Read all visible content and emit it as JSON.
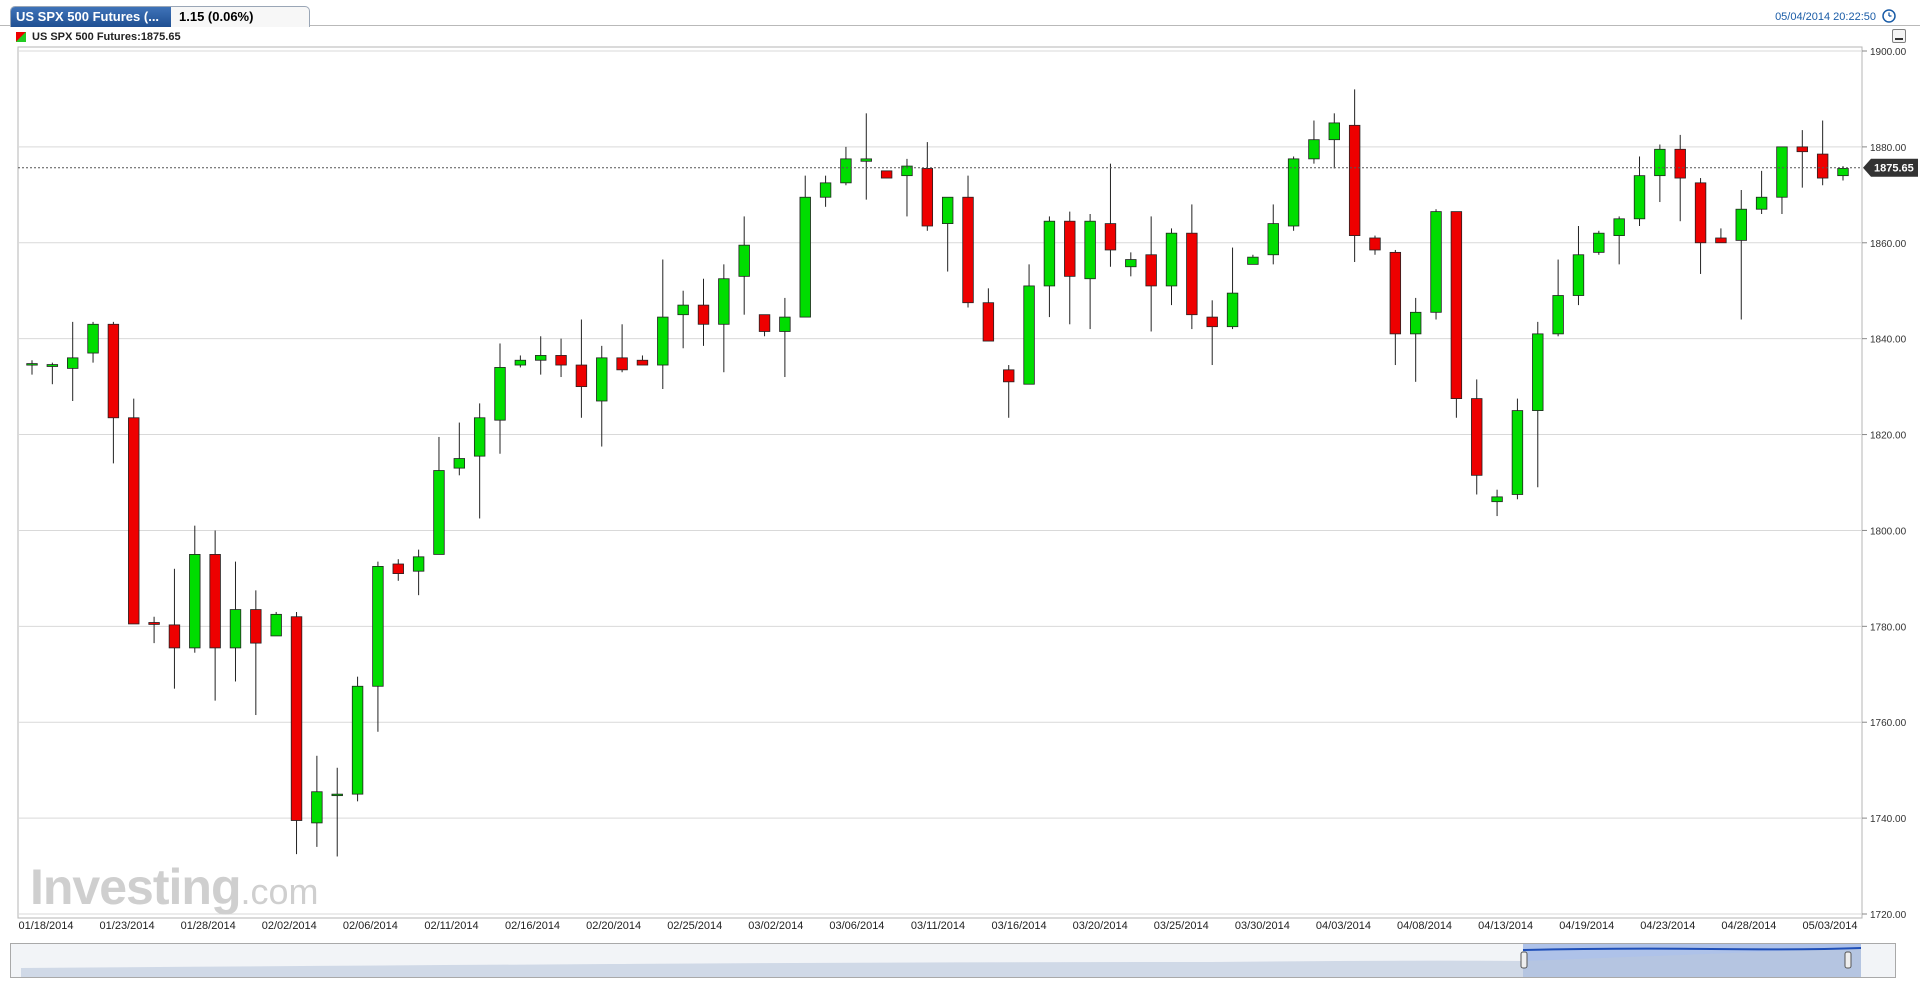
{
  "header": {
    "tab_title": "US SPX 500 Futures (...",
    "change_text": "1.15 (0.06%)",
    "datetime": "05/04/2014 20:22:50",
    "clock_icon": "clock-icon"
  },
  "legend": {
    "text": "US SPX 500 Futures:1875.65",
    "icon": "candle-legend-icon"
  },
  "watermark": {
    "brand": "Investing",
    "suffix": ".com"
  },
  "colors": {
    "up": "#00dd00",
    "down": "#ee0000",
    "grid": "#d9d9d9",
    "last_price_label_bg": "#333333",
    "navigator_fill": "#5b84d6",
    "accent": "#1a5ca7"
  },
  "chart_data": {
    "type": "candlestick",
    "title": "US SPX 500 Futures",
    "ylim": [
      1720,
      1900
    ],
    "y_ticks": [
      1720,
      1740,
      1760,
      1780,
      1800,
      1820,
      1840,
      1860,
      1880,
      1900
    ],
    "y_tick_labels": [
      "1720.00",
      "1740.00",
      "1760.00",
      "1780.00",
      "1800.00",
      "1820.00",
      "1840.00",
      "1860.00",
      "1880.00",
      "1900.00"
    ],
    "x_tick_labels": [
      "01/18/2014",
      "01/23/2014",
      "01/28/2014",
      "02/02/2014",
      "02/06/2014",
      "02/11/2014",
      "02/16/2014",
      "02/20/2014",
      "02/25/2014",
      "03/02/2014",
      "03/06/2014",
      "03/11/2014",
      "03/16/2014",
      "03/20/2014",
      "03/25/2014",
      "03/30/2014",
      "04/03/2014",
      "04/08/2014",
      "04/13/2014",
      "04/19/2014",
      "04/23/2014",
      "04/28/2014",
      "05/03/2014"
    ],
    "last_price": 1875.65,
    "last_price_label": "1875.65",
    "grid": true,
    "series": [
      {
        "candles": [
          {
            "o": 1834.5,
            "h": 1835.5,
            "l": 1832.5,
            "c": 1834.8
          },
          {
            "o": 1834.2,
            "h": 1835,
            "l": 1830.5,
            "c": 1834.6
          },
          {
            "o": 1833.8,
            "h": 1843.5,
            "l": 1827,
            "c": 1836
          },
          {
            "o": 1837,
            "h": 1843.5,
            "l": 1835,
            "c": 1843
          },
          {
            "o": 1843,
            "h": 1843.5,
            "l": 1814,
            "c": 1823.5
          },
          {
            "o": 1823.5,
            "h": 1827.5,
            "l": 1780.5,
            "c": 1780.5
          },
          {
            "o": 1780.8,
            "h": 1782,
            "l": 1776.5,
            "c": 1780.4
          },
          {
            "o": 1780.3,
            "h": 1792,
            "l": 1767,
            "c": 1775.5
          },
          {
            "o": 1775.5,
            "h": 1801,
            "l": 1774.5,
            "c": 1795
          },
          {
            "o": 1795,
            "h": 1800,
            "l": 1764.5,
            "c": 1775.5
          },
          {
            "o": 1775.5,
            "h": 1793.5,
            "l": 1768.5,
            "c": 1783.5
          },
          {
            "o": 1783.5,
            "h": 1787.5,
            "l": 1761.5,
            "c": 1776.5
          },
          {
            "o": 1778,
            "h": 1783,
            "l": 1778,
            "c": 1782.5
          },
          {
            "o": 1782,
            "h": 1783,
            "l": 1732.5,
            "c": 1739.5
          },
          {
            "o": 1739,
            "h": 1753,
            "l": 1734,
            "c": 1745.5
          },
          {
            "o": 1745,
            "h": 1750.5,
            "l": 1732,
            "c": 1745
          },
          {
            "o": 1745,
            "h": 1769.5,
            "l": 1743.5,
            "c": 1767.5
          },
          {
            "o": 1767.5,
            "h": 1793.5,
            "l": 1758,
            "c": 1792.5
          },
          {
            "o": 1793,
            "h": 1794,
            "l": 1789.5,
            "c": 1791
          },
          {
            "o": 1791.5,
            "h": 1796,
            "l": 1786.5,
            "c": 1794.5
          },
          {
            "o": 1795,
            "h": 1819.5,
            "l": 1795,
            "c": 1812.5
          },
          {
            "o": 1813,
            "h": 1822.5,
            "l": 1811.5,
            "c": 1815
          },
          {
            "o": 1815.5,
            "h": 1826.5,
            "l": 1802.5,
            "c": 1823.5
          },
          {
            "o": 1823,
            "h": 1839,
            "l": 1816,
            "c": 1834
          },
          {
            "o": 1834.5,
            "h": 1836.5,
            "l": 1834,
            "c": 1835.5
          },
          {
            "o": 1835.5,
            "h": 1840.5,
            "l": 1832.5,
            "c": 1836.5
          },
          {
            "o": 1836.5,
            "h": 1840,
            "l": 1832,
            "c": 1834.5
          },
          {
            "o": 1834.5,
            "h": 1844,
            "l": 1823.5,
            "c": 1830
          },
          {
            "o": 1827,
            "h": 1838.5,
            "l": 1817.5,
            "c": 1836
          },
          {
            "o": 1836,
            "h": 1843,
            "l": 1833,
            "c": 1833.5
          },
          {
            "o": 1835.5,
            "h": 1836.5,
            "l": 1834.5,
            "c": 1834.5
          },
          {
            "o": 1834.5,
            "h": 1856.5,
            "l": 1829.5,
            "c": 1844.5
          },
          {
            "o": 1845,
            "h": 1850,
            "l": 1838,
            "c": 1847
          },
          {
            "o": 1847,
            "h": 1852.5,
            "l": 1838.5,
            "c": 1843
          },
          {
            "o": 1843,
            "h": 1855.5,
            "l": 1833,
            "c": 1852.5
          },
          {
            "o": 1853,
            "h": 1865.5,
            "l": 1845,
            "c": 1859.5
          },
          {
            "o": 1845,
            "h": 1845,
            "l": 1840.5,
            "c": 1841.5
          },
          {
            "o": 1841.5,
            "h": 1848.5,
            "l": 1832,
            "c": 1844.5
          },
          {
            "o": 1844.5,
            "h": 1874,
            "l": 1844.5,
            "c": 1869.5
          },
          {
            "o": 1869.5,
            "h": 1874,
            "l": 1867.5,
            "c": 1872.5
          },
          {
            "o": 1872.5,
            "h": 1880,
            "l": 1872,
            "c": 1877.5
          },
          {
            "o": 1877,
            "h": 1887,
            "l": 1869,
            "c": 1877.5
          },
          {
            "o": 1875,
            "h": 1875,
            "l": 1873.5,
            "c": 1873.5
          },
          {
            "o": 1874,
            "h": 1877.5,
            "l": 1865.5,
            "c": 1876
          },
          {
            "o": 1875.5,
            "h": 1881,
            "l": 1862.5,
            "c": 1863.5
          },
          {
            "o": 1864,
            "h": 1869.5,
            "l": 1854,
            "c": 1869.5
          },
          {
            "o": 1869.5,
            "h": 1874,
            "l": 1846.5,
            "c": 1847.5
          },
          {
            "o": 1847.5,
            "h": 1850.5,
            "l": 1839.5,
            "c": 1839.5
          },
          {
            "o": 1833.5,
            "h": 1834.5,
            "l": 1823.5,
            "c": 1831
          },
          {
            "o": 1830.5,
            "h": 1855.5,
            "l": 1830.5,
            "c": 1851
          },
          {
            "o": 1851,
            "h": 1865.5,
            "l": 1844.5,
            "c": 1864.5
          },
          {
            "o": 1864.5,
            "h": 1866.5,
            "l": 1843,
            "c": 1853
          },
          {
            "o": 1852.5,
            "h": 1866,
            "l": 1842,
            "c": 1864.5
          },
          {
            "o": 1864,
            "h": 1876.5,
            "l": 1855,
            "c": 1858.5
          },
          {
            "o": 1855,
            "h": 1858,
            "l": 1853,
            "c": 1856.5
          },
          {
            "o": 1857.5,
            "h": 1865.5,
            "l": 1841.5,
            "c": 1851
          },
          {
            "o": 1851,
            "h": 1863,
            "l": 1847,
            "c": 1862
          },
          {
            "o": 1862,
            "h": 1868,
            "l": 1842,
            "c": 1845
          },
          {
            "o": 1844.5,
            "h": 1848,
            "l": 1834.5,
            "c": 1842.5
          },
          {
            "o": 1842.5,
            "h": 1859,
            "l": 1842,
            "c": 1849.5
          },
          {
            "o": 1855.5,
            "h": 1857.5,
            "l": 1855.5,
            "c": 1857
          },
          {
            "o": 1857.5,
            "h": 1868,
            "l": 1855.5,
            "c": 1864
          },
          {
            "o": 1863.5,
            "h": 1878,
            "l": 1862.5,
            "c": 1877.5
          },
          {
            "o": 1877.5,
            "h": 1885.5,
            "l": 1876.5,
            "c": 1881.5
          },
          {
            "o": 1881.5,
            "h": 1887,
            "l": 1875.5,
            "c": 1885
          },
          {
            "o": 1884.5,
            "h": 1892,
            "l": 1856,
            "c": 1861.5
          },
          {
            "o": 1861,
            "h": 1861.5,
            "l": 1857.5,
            "c": 1858.5
          },
          {
            "o": 1858,
            "h": 1858.5,
            "l": 1834.5,
            "c": 1841
          },
          {
            "o": 1841,
            "h": 1848.5,
            "l": 1831,
            "c": 1845.5
          },
          {
            "o": 1845.5,
            "h": 1867,
            "l": 1844,
            "c": 1866.5
          },
          {
            "o": 1866.5,
            "h": 1866.5,
            "l": 1823.5,
            "c": 1827.5
          },
          {
            "o": 1827.5,
            "h": 1831.5,
            "l": 1807.5,
            "c": 1811.5
          },
          {
            "o": 1806,
            "h": 1808.5,
            "l": 1803,
            "c": 1807
          },
          {
            "o": 1807.5,
            "h": 1827.5,
            "l": 1806.5,
            "c": 1825
          },
          {
            "o": 1825,
            "h": 1843.5,
            "l": 1809,
            "c": 1841
          },
          {
            "o": 1841,
            "h": 1856.5,
            "l": 1840.5,
            "c": 1849
          },
          {
            "o": 1849,
            "h": 1863.5,
            "l": 1847,
            "c": 1857.5
          },
          {
            "o": 1858,
            "h": 1862.5,
            "l": 1857.5,
            "c": 1862
          },
          {
            "o": 1861.5,
            "h": 1865.5,
            "l": 1855.5,
            "c": 1865
          },
          {
            "o": 1865,
            "h": 1878,
            "l": 1863.5,
            "c": 1874
          },
          {
            "o": 1874,
            "h": 1880.5,
            "l": 1868.5,
            "c": 1879.5
          },
          {
            "o": 1879.5,
            "h": 1882.5,
            "l": 1864.5,
            "c": 1873.5
          },
          {
            "o": 1872.5,
            "h": 1873.5,
            "l": 1853.5,
            "c": 1860
          },
          {
            "o": 1861,
            "h": 1863,
            "l": 1860,
            "c": 1860
          },
          {
            "o": 1860.5,
            "h": 1871,
            "l": 1844,
            "c": 1867
          },
          {
            "o": 1867,
            "h": 1875,
            "l": 1866,
            "c": 1869.5
          },
          {
            "o": 1869.5,
            "h": 1879.5,
            "l": 1866,
            "c": 1880
          },
          {
            "o": 1880,
            "h": 1883.5,
            "l": 1871.5,
            "c": 1879
          },
          {
            "o": 1878.5,
            "h": 1885.5,
            "l": 1872,
            "c": 1873.5
          },
          {
            "o": 1874,
            "h": 1876,
            "l": 1873,
            "c": 1875.5
          }
        ]
      }
    ]
  }
}
